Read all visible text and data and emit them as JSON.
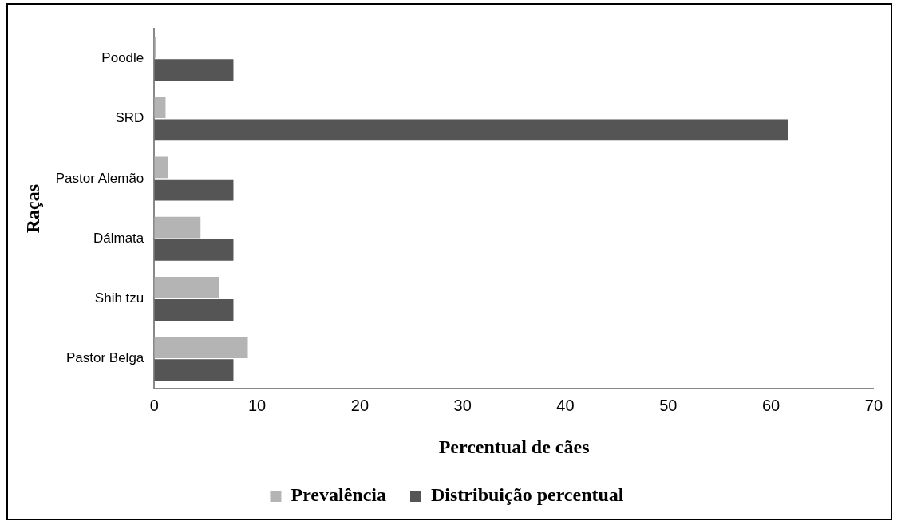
{
  "chart_data": {
    "type": "bar",
    "orientation": "horizontal",
    "xlabel": "Percentual de cães",
    "ylabel": "Raças",
    "categories": [
      "Poodle",
      "SRD",
      "Pastor Alemão",
      "Dálmata",
      "Shih tzu",
      "Pastor Belga"
    ],
    "series": [
      {
        "name": "Prevalência",
        "color": "#b4b4b4",
        "values": [
          0.2,
          1.1,
          1.3,
          4.5,
          6.3,
          9.1
        ]
      },
      {
        "name": "Distribuição percentual",
        "color": "#555555",
        "values": [
          7.7,
          61.7,
          7.7,
          7.7,
          7.7,
          7.7
        ]
      }
    ],
    "xlim": [
      0,
      70
    ],
    "xticks": [
      0,
      10,
      20,
      30,
      40,
      50,
      60,
      70
    ],
    "grid": false,
    "legend": "bottom"
  }
}
